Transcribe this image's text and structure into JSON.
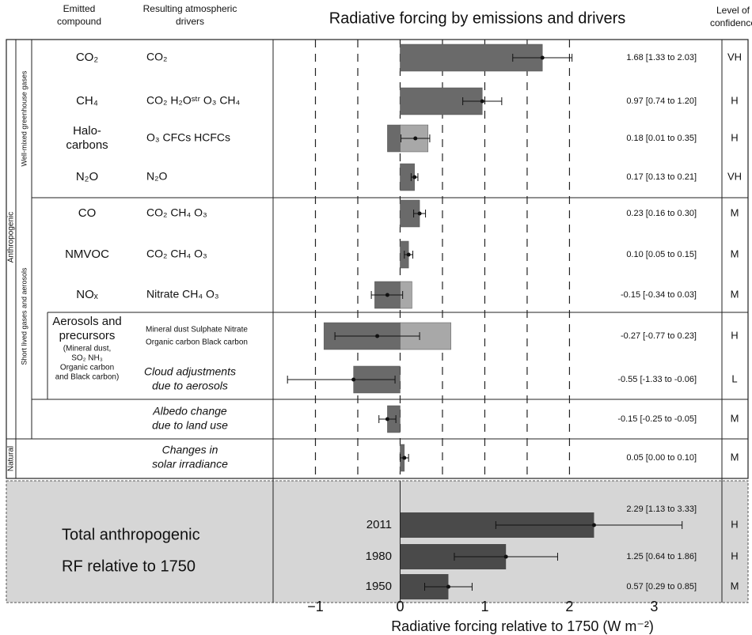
{
  "chart_data": {
    "type": "bar",
    "orientation": "horizontal",
    "title": "Radiative forcing by emissions and drivers",
    "xlabel": "Radiative forcing relative to 1750 (W m⁻²)",
    "headers": {
      "emitted": [
        "Emitted",
        "compound"
      ],
      "drivers": [
        "Resulting atmospheric",
        "drivers"
      ],
      "confidence": [
        "Level of",
        "confidence"
      ]
    },
    "groups": {
      "anthropogenic": "Anthropogenic",
      "natural": "Natural",
      "well_mixed": "Well-mixed greenhouse gases",
      "short_lived": "Short lived gases and aerosols"
    },
    "xlim": [
      -1.5,
      3.8
    ],
    "xticks": [
      {
        "value": -1,
        "label": "−1"
      },
      0,
      1,
      2,
      3
    ],
    "xgrid": [
      -1,
      -0.5,
      0,
      0.5,
      1,
      1.5,
      2
    ],
    "segment_colors": [
      "#6a6a6a",
      "#a8a8a8"
    ],
    "rows": [
      {
        "compound": [
          "CO₂"
        ],
        "drivers": [
          "CO₂"
        ],
        "segments": [
          1.68
        ],
        "value": 1.68,
        "low": 1.33,
        "high": 2.03,
        "value_label": "1.68 [1.33 to 2.03]",
        "confidence": "VH"
      },
      {
        "compound": [
          "CH₄"
        ],
        "drivers": [
          "CO₂  H₂Oˢᵗʳ O₃  CH₄"
        ],
        "segments": [
          0.97
        ],
        "value": 0.97,
        "low": 0.74,
        "high": 1.2,
        "value_label": "0.97 [0.74 to 1.20]",
        "confidence": "H"
      },
      {
        "compound": [
          "Halo-",
          "carbons"
        ],
        "drivers": [
          "O₃  CFCs  HCFCs"
        ],
        "segments": [
          -0.15,
          0.33
        ],
        "value": 0.18,
        "low": 0.01,
        "high": 0.35,
        "value_label": "0.18 [0.01 to 0.35]",
        "confidence": "H"
      },
      {
        "compound": [
          "N₂O"
        ],
        "drivers": [
          "N₂O"
        ],
        "segments": [
          0.17
        ],
        "value": 0.17,
        "low": 0.13,
        "high": 0.21,
        "value_label": "0.17 [0.13 to 0.21]",
        "confidence": "VH"
      },
      {
        "compound": [
          "CO"
        ],
        "drivers": [
          "CO₂  CH₄  O₃"
        ],
        "segments": [
          0.23
        ],
        "value": 0.23,
        "low": 0.16,
        "high": 0.3,
        "value_label": "0.23 [0.16 to 0.30]",
        "confidence": "M"
      },
      {
        "compound": [
          "NMVOC"
        ],
        "drivers": [
          "CO₂  CH₄  O₃"
        ],
        "segments": [
          0.1
        ],
        "value": 0.1,
        "low": 0.05,
        "high": 0.15,
        "value_label": "0.10 [0.05 to 0.15]",
        "confidence": "M"
      },
      {
        "compound": [
          "NOₓ"
        ],
        "drivers": [
          "Nitrate  CH₄  O₃"
        ],
        "segments": [
          -0.3,
          0.14
        ],
        "value": -0.15,
        "low": -0.34,
        "high": 0.03,
        "value_label": "-0.15 [-0.34 to 0.03]",
        "confidence": "M"
      },
      {
        "compound": [
          "Aerosols and",
          "precursors"
        ],
        "compound_note": [
          "(Mineral dust,",
          "SO₂  NH₃",
          "Organic carbon",
          "and Black carbon)"
        ],
        "drivers": [
          "Mineral dust  Sulphate  Nitrate",
          "Organic carbon  Black carbon"
        ],
        "drivers_style": "small",
        "segments": [
          -0.9,
          0.6
        ],
        "value": -0.27,
        "low": -0.77,
        "high": 0.23,
        "value_label": "-0.27 [-0.77 to 0.23]",
        "confidence": "H"
      },
      {
        "drivers": [
          "Cloud adjustments",
          "due to aerosols"
        ],
        "drivers_style": "italic",
        "segments": [
          -0.55
        ],
        "value": -0.55,
        "low": -1.33,
        "high": -0.06,
        "value_label": "-0.55 [-1.33 to -0.06]",
        "confidence": "L"
      },
      {
        "drivers": [
          "Albedo change",
          "due to land use"
        ],
        "drivers_style": "italic",
        "segments": [
          -0.15
        ],
        "value": -0.15,
        "low": -0.25,
        "high": -0.05,
        "value_label": "-0.15 [-0.25 to -0.05]",
        "confidence": "M"
      },
      {
        "drivers": [
          "Changes in",
          "solar irradiance"
        ],
        "drivers_style": "italic",
        "segments": [
          0.05
        ],
        "value": 0.05,
        "low": 0.0,
        "high": 0.1,
        "value_label": "0.05 [0.00 to 0.10]",
        "confidence": "M"
      }
    ],
    "total": {
      "label": [
        "Total anthropogenic",
        "RF relative to 1750"
      ],
      "color": "#4a4a4a",
      "rows": [
        {
          "year": "2011",
          "value": 2.29,
          "low": 1.13,
          "high": 3.33,
          "value_label": "2.29 [1.13 to 3.33]",
          "confidence": "H"
        },
        {
          "year": "1980",
          "value": 1.25,
          "low": 0.64,
          "high": 1.86,
          "value_label": "1.25 [0.64 to 1.86]",
          "confidence": "H"
        },
        {
          "year": "1950",
          "value": 0.57,
          "low": 0.29,
          "high": 0.85,
          "value_label": "0.57 [0.29 to 0.85]",
          "confidence": "M"
        }
      ]
    }
  }
}
